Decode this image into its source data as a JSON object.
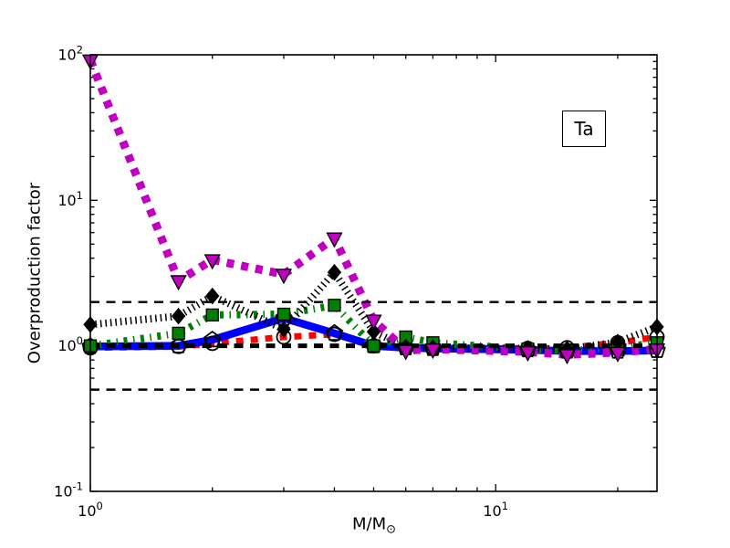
{
  "chart_data": {
    "type": "line",
    "title": "",
    "annotation": "Ta",
    "xlabel": "M/M",
    "xlabel_subscript": "⊙",
    "ylabel": "Overproduction factor",
    "xscale": "log",
    "yscale": "log",
    "xlim": [
      1,
      25
    ],
    "ylim": [
      0.1,
      100
    ],
    "x_major_ticks": [
      1,
      10
    ],
    "y_major_ticks": [
      0.1,
      1,
      10,
      100
    ],
    "grid": false,
    "legend": "none",
    "axis_color": "#000000",
    "reference_lines": [
      {
        "y": 2.0,
        "color": "#000000",
        "style": "dashed",
        "lw": 2.4
      },
      {
        "y": 1.0,
        "color": "#000000",
        "style": "dashed",
        "lw": 5
      },
      {
        "y": 0.5,
        "color": "#000000",
        "style": "dashed",
        "lw": 2.4
      }
    ],
    "x": [
      1,
      1.65,
      2,
      3,
      4,
      5,
      6,
      7,
      12,
      15,
      20,
      25
    ],
    "series": [
      {
        "name": "red-dashed-open-circles",
        "color": "#ff0000",
        "style": "dashed",
        "lw": 7,
        "marker": "circle",
        "values": [
          0.97,
          0.99,
          1.04,
          1.15,
          1.2,
          1.0,
          0.98,
          0.97,
          0.96,
          0.97,
          1.05,
          1.15
        ]
      },
      {
        "name": "blue-solid-open-pentagons",
        "color": "#0000ff",
        "style": "solid",
        "lw": 8.5,
        "marker": "pentagon",
        "values": [
          0.99,
          1.0,
          1.1,
          1.55,
          1.22,
          1.0,
          0.97,
          0.96,
          0.94,
          0.92,
          0.92,
          0.93
        ]
      },
      {
        "name": "green-dashdot-squares",
        "color": "#008000",
        "style": "dashdot",
        "lw": 8,
        "marker": "square",
        "values": [
          1.0,
          1.22,
          1.63,
          1.65,
          1.9,
          1.0,
          1.15,
          1.05,
          0.95,
          0.93,
          0.97,
          1.05
        ]
      },
      {
        "name": "black-dotted-diamonds",
        "color": "#000000",
        "style": "dotted",
        "lw": 8,
        "marker": "diamond",
        "values": [
          1.4,
          1.6,
          2.2,
          1.3,
          3.2,
          1.25,
          0.98,
          0.97,
          0.96,
          0.95,
          1.06,
          1.35
        ]
      },
      {
        "name": "magenta-dashed-triangles",
        "color": "#bf00bf",
        "style": "dashed",
        "lw": 9,
        "marker": "triangle-down",
        "values": [
          92,
          2.8,
          3.9,
          3.1,
          5.5,
          1.5,
          0.93,
          0.95,
          0.91,
          0.87,
          0.9,
          0.95
        ]
      }
    ]
  }
}
